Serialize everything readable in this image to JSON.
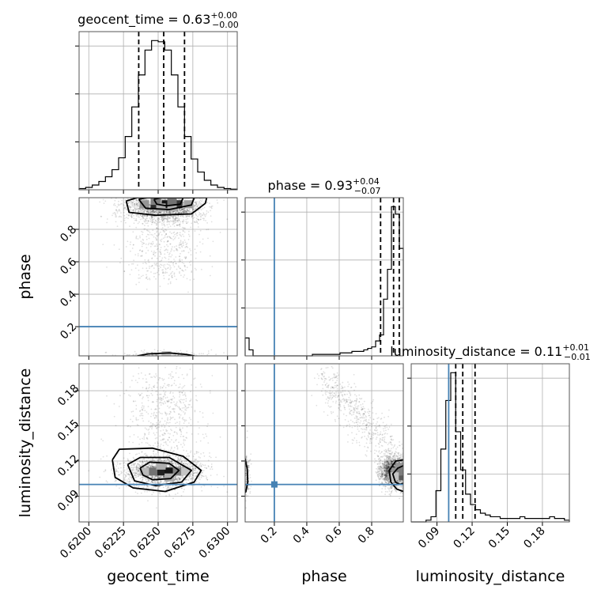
{
  "chart_data": {
    "type": "corner",
    "parameters": [
      {
        "name": "geocent_time",
        "label": "geocent_time",
        "median": "0.63",
        "plus": "+0.00",
        "minus": "−0.00",
        "range": [
          0.6193,
          0.6307
        ],
        "ticks": [
          0.62,
          0.6225,
          0.625,
          0.6275,
          0.63
        ],
        "tick_labels": [
          "0.6200",
          "0.6225",
          "0.6250",
          "0.6275",
          "0.6300"
        ],
        "quantiles": [
          0.6236,
          0.6254,
          0.6269
        ],
        "truth": null,
        "hist_edges": [
          0.6193,
          0.6307
        ],
        "hist_counts": [
          1,
          2,
          4,
          7,
          11,
          17,
          27,
          45,
          70,
          97,
          118,
          126,
          125,
          118,
          97,
          70,
          45,
          26,
          15,
          8,
          4,
          2,
          1,
          0.5
        ]
      },
      {
        "name": "phase",
        "label": "phase",
        "median": "0.93",
        "plus": "+0.04",
        "minus": "−0.07",
        "range": [
          0.02,
          0.995
        ],
        "ticks": [
          0.2,
          0.4,
          0.6,
          0.8
        ],
        "tick_labels": [
          "0.2",
          "0.4",
          "0.6",
          "0.8"
        ],
        "quantiles": [
          0.855,
          0.935,
          0.97
        ],
        "truth": 0.2,
        "hist_edges": [
          0.02,
          0.995
        ],
        "hist_counts": [
          12,
          4,
          0,
          0,
          0,
          0,
          0,
          0,
          0,
          0,
          0,
          0,
          0,
          0,
          0,
          0,
          0,
          1,
          1,
          1,
          1,
          1,
          1,
          1,
          2,
          2,
          2,
          3,
          3,
          3,
          4,
          5,
          6,
          10,
          14,
          38,
          58,
          100,
          95,
          72
        ]
      },
      {
        "name": "luminosity_distance",
        "label": "luminosity_distance",
        "median": "0.11",
        "plus": "+0.01",
        "minus": "−0.01",
        "range": [
          0.068,
          0.203
        ],
        "ticks": [
          0.09,
          0.12,
          0.15,
          0.18
        ],
        "tick_labels": [
          "0.09",
          "0.12",
          "0.15",
          "0.18"
        ],
        "quantiles": [
          0.106,
          0.112,
          0.1225
        ],
        "truth": 0.1,
        "hist_edges": [
          0.068,
          0.203
        ],
        "hist_counts": [
          0,
          0,
          0,
          1,
          3,
          18,
          42,
          70,
          86,
          52,
          30,
          16,
          10,
          7,
          5,
          4,
          3,
          3,
          2,
          2,
          2,
          2,
          3,
          2,
          2,
          2,
          2,
          2,
          3,
          2,
          2,
          1
        ]
      }
    ],
    "contours_2d": [
      {
        "x": "geocent_time",
        "y": "phase",
        "levels": [
          [
            [
              0.6227,
              0.975
            ],
            [
              0.6235,
              0.995
            ],
            [
              0.6285,
              0.995
            ],
            [
              0.6284,
              0.96
            ],
            [
              0.6274,
              0.895
            ],
            [
              0.6248,
              0.887
            ],
            [
              0.6229,
              0.905
            ],
            [
              0.6227,
              0.975
            ]
          ],
          [
            [
              0.6236,
              0.985
            ],
            [
              0.6242,
              0.995
            ],
            [
              0.6276,
              0.995
            ],
            [
              0.6274,
              0.95
            ],
            [
              0.6258,
              0.922
            ],
            [
              0.6241,
              0.93
            ],
            [
              0.6236,
              0.985
            ]
          ],
          [
            [
              0.6247,
              0.985
            ],
            [
              0.6252,
              0.995
            ],
            [
              0.6268,
              0.995
            ],
            [
              0.6266,
              0.955
            ],
            [
              0.6256,
              0.945
            ],
            [
              0.6249,
              0.955
            ],
            [
              0.6247,
              0.985
            ]
          ],
          [
            [
              0.6235,
              0.02
            ],
            [
              0.6243,
              0.032
            ],
            [
              0.6258,
              0.038
            ],
            [
              0.6271,
              0.028
            ],
            [
              0.6276,
              0.02
            ]
          ]
        ],
        "truth": [
          null,
          0.2
        ]
      },
      {
        "x": "geocent_time",
        "y": "luminosity_distance",
        "levels": [
          [
            [
              0.6217,
              0.121
            ],
            [
              0.6222,
              0.13
            ],
            [
              0.6246,
              0.131
            ],
            [
              0.6268,
              0.124
            ],
            [
              0.6281,
              0.112
            ],
            [
              0.6276,
              0.102
            ],
            [
              0.6255,
              0.094
            ],
            [
              0.6232,
              0.097
            ],
            [
              0.6219,
              0.106
            ],
            [
              0.6217,
              0.121
            ]
          ],
          [
            [
              0.6228,
              0.117
            ],
            [
              0.6237,
              0.123
            ],
            [
              0.6258,
              0.123
            ],
            [
              0.6274,
              0.112
            ],
            [
              0.6267,
              0.102
            ],
            [
              0.6248,
              0.099
            ],
            [
              0.6233,
              0.103
            ],
            [
              0.6228,
              0.117
            ]
          ],
          [
            [
              0.6237,
              0.114
            ],
            [
              0.6244,
              0.119
            ],
            [
              0.6258,
              0.118
            ],
            [
              0.6265,
              0.112
            ],
            [
              0.6259,
              0.105
            ],
            [
              0.6246,
              0.104
            ],
            [
              0.6239,
              0.108
            ],
            [
              0.6237,
              0.114
            ]
          ]
        ],
        "truth": [
          null,
          0.1
        ]
      },
      {
        "x": "phase",
        "y": "luminosity_distance",
        "levels": [
          [
            [
              0.995,
              0.121
            ],
            [
              0.948,
              0.12
            ],
            [
              0.908,
              0.112
            ],
            [
              0.918,
              0.102
            ],
            [
              0.955,
              0.096
            ],
            [
              0.995,
              0.094
            ]
          ],
          [
            [
              0.995,
              0.116
            ],
            [
              0.962,
              0.114
            ],
            [
              0.93,
              0.109
            ],
            [
              0.946,
              0.102
            ],
            [
              0.975,
              0.1
            ],
            [
              0.995,
              0.101
            ]
          ],
          [
            [
              0.02,
              0.122
            ],
            [
              0.033,
              0.113
            ],
            [
              0.036,
              0.102
            ],
            [
              0.025,
              0.094
            ],
            [
              0.02,
              0.093
            ]
          ]
        ],
        "truth": [
          0.2,
          0.1
        ]
      }
    ]
  }
}
